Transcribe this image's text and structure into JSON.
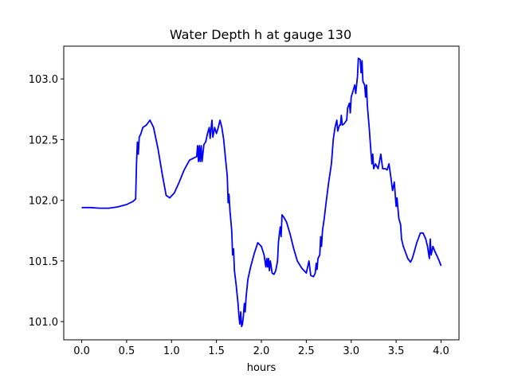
{
  "chart_data": {
    "type": "line",
    "title": "Water Depth h at gauge 130",
    "xlabel": "hours",
    "ylabel": "",
    "xlim": [
      -0.2,
      4.2
    ],
    "ylim": [
      100.85,
      103.27
    ],
    "xticks": [
      0.0,
      0.5,
      1.0,
      1.5,
      2.0,
      2.5,
      3.0,
      3.5,
      4.0
    ],
    "xtick_labels": [
      "0.0",
      "0.5",
      "1.0",
      "1.5",
      "2.0",
      "2.5",
      "3.0",
      "3.5",
      "4.0"
    ],
    "yticks": [
      101.0,
      101.5,
      102.0,
      102.5,
      103.0
    ],
    "ytick_labels": [
      "101.0",
      "101.5",
      "102.0",
      "102.5",
      "103.0"
    ],
    "grid": false,
    "legend": "none",
    "series": [
      {
        "color": "#0000ff",
        "points": [
          [
            0.0,
            101.94
          ],
          [
            0.1,
            101.94
          ],
          [
            0.2,
            101.935
          ],
          [
            0.3,
            101.935
          ],
          [
            0.4,
            101.945
          ],
          [
            0.5,
            101.965
          ],
          [
            0.57,
            101.99
          ],
          [
            0.6,
            102.01
          ],
          [
            0.61,
            102.3
          ],
          [
            0.62,
            102.48
          ],
          [
            0.63,
            102.38
          ],
          [
            0.64,
            102.52
          ],
          [
            0.66,
            102.55
          ],
          [
            0.68,
            102.6
          ],
          [
            0.72,
            102.62
          ],
          [
            0.76,
            102.66
          ],
          [
            0.8,
            102.6
          ],
          [
            0.85,
            102.42
          ],
          [
            0.9,
            102.2
          ],
          [
            0.94,
            102.04
          ],
          [
            0.98,
            102.02
          ],
          [
            1.03,
            102.06
          ],
          [
            1.08,
            102.14
          ],
          [
            1.14,
            102.25
          ],
          [
            1.2,
            102.33
          ],
          [
            1.25,
            102.35
          ],
          [
            1.28,
            102.36
          ],
          [
            1.29,
            102.45
          ],
          [
            1.3,
            102.32
          ],
          [
            1.31,
            102.45
          ],
          [
            1.32,
            102.32
          ],
          [
            1.33,
            102.45
          ],
          [
            1.34,
            102.32
          ],
          [
            1.36,
            102.46
          ],
          [
            1.38,
            102.48
          ],
          [
            1.4,
            102.55
          ],
          [
            1.42,
            102.6
          ],
          [
            1.43,
            102.51
          ],
          [
            1.45,
            102.66
          ],
          [
            1.46,
            102.52
          ],
          [
            1.48,
            102.6
          ],
          [
            1.5,
            102.55
          ],
          [
            1.52,
            102.6
          ],
          [
            1.54,
            102.66
          ],
          [
            1.56,
            102.6
          ],
          [
            1.58,
            102.5
          ],
          [
            1.6,
            102.35
          ],
          [
            1.62,
            102.2
          ],
          [
            1.63,
            101.98
          ],
          [
            1.64,
            102.05
          ],
          [
            1.65,
            101.92
          ],
          [
            1.67,
            101.75
          ],
          [
            1.68,
            101.55
          ],
          [
            1.69,
            101.6
          ],
          [
            1.7,
            101.42
          ],
          [
            1.72,
            101.3
          ],
          [
            1.74,
            101.15
          ],
          [
            1.75,
            101.05
          ],
          [
            1.76,
            100.98
          ],
          [
            1.77,
            101.08
          ],
          [
            1.78,
            100.96
          ],
          [
            1.79,
            100.98
          ],
          [
            1.8,
            101.05
          ],
          [
            1.81,
            101.15
          ],
          [
            1.82,
            101.08
          ],
          [
            1.83,
            101.2
          ],
          [
            1.85,
            101.35
          ],
          [
            1.88,
            101.45
          ],
          [
            1.92,
            101.56
          ],
          [
            1.96,
            101.65
          ],
          [
            2.0,
            101.62
          ],
          [
            2.03,
            101.55
          ],
          [
            2.05,
            101.45
          ],
          [
            2.06,
            101.52
          ],
          [
            2.07,
            101.45
          ],
          [
            2.08,
            101.52
          ],
          [
            2.09,
            101.42
          ],
          [
            2.1,
            101.5
          ],
          [
            2.12,
            101.4
          ],
          [
            2.14,
            101.39
          ],
          [
            2.16,
            101.42
          ],
          [
            2.18,
            101.5
          ],
          [
            2.19,
            101.65
          ],
          [
            2.2,
            101.72
          ],
          [
            2.21,
            101.78
          ],
          [
            2.22,
            101.7
          ],
          [
            2.23,
            101.88
          ],
          [
            2.25,
            101.86
          ],
          [
            2.28,
            101.82
          ],
          [
            2.32,
            101.72
          ],
          [
            2.36,
            101.6
          ],
          [
            2.4,
            101.5
          ],
          [
            2.45,
            101.44
          ],
          [
            2.5,
            101.4
          ],
          [
            2.53,
            101.5
          ],
          [
            2.55,
            101.38
          ],
          [
            2.58,
            101.37
          ],
          [
            2.6,
            101.4
          ],
          [
            2.61,
            101.48
          ],
          [
            2.62,
            101.43
          ],
          [
            2.63,
            101.52
          ],
          [
            2.65,
            101.55
          ],
          [
            2.66,
            101.7
          ],
          [
            2.67,
            101.62
          ],
          [
            2.68,
            101.75
          ],
          [
            2.7,
            101.85
          ],
          [
            2.72,
            101.98
          ],
          [
            2.75,
            102.15
          ],
          [
            2.78,
            102.3
          ],
          [
            2.8,
            102.5
          ],
          [
            2.82,
            102.6
          ],
          [
            2.84,
            102.66
          ],
          [
            2.85,
            102.57
          ],
          [
            2.87,
            102.62
          ],
          [
            2.88,
            102.62
          ],
          [
            2.89,
            102.7
          ],
          [
            2.9,
            102.62
          ],
          [
            2.92,
            102.63
          ],
          [
            2.95,
            102.66
          ],
          [
            2.96,
            102.76
          ],
          [
            2.98,
            102.8
          ],
          [
            2.99,
            102.72
          ],
          [
            3.0,
            102.85
          ],
          [
            3.02,
            102.9
          ],
          [
            3.04,
            102.95
          ],
          [
            3.05,
            102.88
          ],
          [
            3.07,
            103.02
          ],
          [
            3.08,
            103.17
          ],
          [
            3.1,
            103.16
          ],
          [
            3.11,
            103.05
          ],
          [
            3.12,
            103.15
          ],
          [
            3.13,
            102.98
          ],
          [
            3.15,
            102.95
          ],
          [
            3.16,
            102.85
          ],
          [
            3.17,
            102.95
          ],
          [
            3.18,
            102.78
          ],
          [
            3.2,
            102.6
          ],
          [
            3.22,
            102.4
          ],
          [
            3.23,
            102.3
          ],
          [
            3.24,
            102.38
          ],
          [
            3.25,
            102.26
          ],
          [
            3.27,
            102.3
          ],
          [
            3.3,
            102.26
          ],
          [
            3.33,
            102.38
          ],
          [
            3.35,
            102.26
          ],
          [
            3.38,
            102.26
          ],
          [
            3.4,
            102.25
          ],
          [
            3.42,
            102.3
          ],
          [
            3.44,
            102.2
          ],
          [
            3.46,
            102.08
          ],
          [
            3.48,
            102.15
          ],
          [
            3.5,
            101.95
          ],
          [
            3.51,
            102.02
          ],
          [
            3.53,
            101.85
          ],
          [
            3.55,
            101.8
          ],
          [
            3.56,
            101.68
          ],
          [
            3.58,
            101.62
          ],
          [
            3.6,
            101.58
          ],
          [
            3.63,
            101.52
          ],
          [
            3.66,
            101.49
          ],
          [
            3.68,
            101.52
          ],
          [
            3.7,
            101.57
          ],
          [
            3.73,
            101.65
          ],
          [
            3.77,
            101.73
          ],
          [
            3.8,
            101.73
          ],
          [
            3.83,
            101.68
          ],
          [
            3.85,
            101.62
          ],
          [
            3.87,
            101.52
          ],
          [
            3.88,
            101.68
          ],
          [
            3.89,
            101.55
          ],
          [
            3.91,
            101.62
          ],
          [
            3.93,
            101.58
          ],
          [
            3.95,
            101.55
          ],
          [
            3.98,
            101.5
          ],
          [
            4.0,
            101.46
          ]
        ]
      }
    ]
  }
}
